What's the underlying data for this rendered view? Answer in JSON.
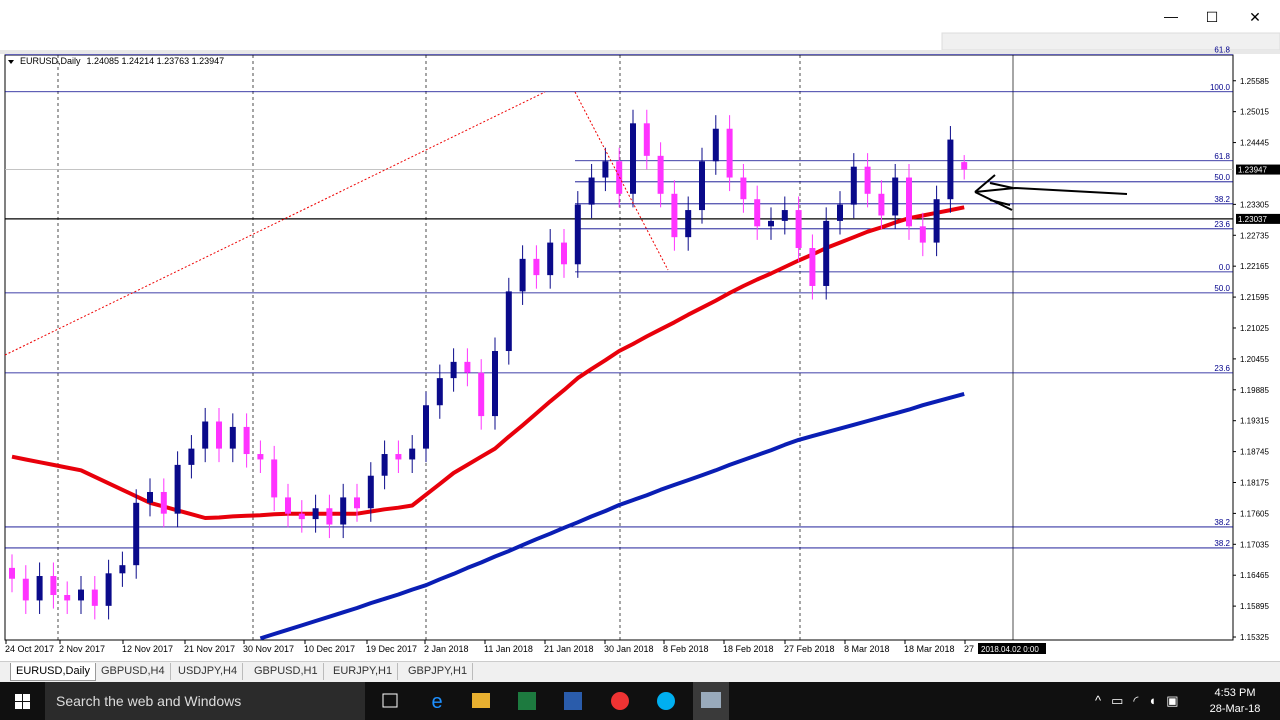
{
  "window": {
    "controls": {
      "minimize": "—",
      "maximize": "☐",
      "close": "✕"
    }
  },
  "chart_data": {
    "type": "candlestick",
    "title": "EURUSD,Daily",
    "ohlc_text": "1.24085 1.24214 1.23763 1.23947",
    "open": [
      1.166,
      1.164,
      1.16,
      1.1645,
      1.161,
      1.16,
      1.162,
      1.159,
      1.165,
      1.1665,
      1.178,
      1.18,
      1.176,
      1.185,
      1.188,
      1.193,
      1.188,
      1.192,
      1.187,
      1.186,
      1.179,
      1.176,
      1.175,
      1.177,
      1.174,
      1.179,
      1.177,
      1.183,
      1.187,
      1.186,
      1.188,
      1.196,
      1.201,
      1.204,
      1.202,
      1.194,
      1.206,
      1.217,
      1.223,
      1.22,
      1.226,
      1.222,
      1.233,
      1.238,
      1.241,
      1.235,
      1.248,
      1.242,
      1.235,
      1.227,
      1.232,
      1.241,
      1.247,
      1.238,
      1.234,
      1.229,
      1.23,
      1.232,
      1.225,
      1.218,
      1.23,
      1.233,
      1.24,
      1.235,
      1.231,
      1.238,
      1.229,
      1.226,
      1.234,
      1.24085
    ],
    "high": [
      1.1685,
      1.1665,
      1.167,
      1.167,
      1.1635,
      1.1645,
      1.1645,
      1.1675,
      1.169,
      1.1805,
      1.1825,
      1.1825,
      1.1875,
      1.1905,
      1.1955,
      1.1955,
      1.1945,
      1.1945,
      1.1895,
      1.1885,
      1.1815,
      1.1785,
      1.1795,
      1.1795,
      1.1815,
      1.1815,
      1.1855,
      1.1895,
      1.1895,
      1.1905,
      1.1985,
      1.2035,
      1.2065,
      1.2065,
      1.2045,
      1.2085,
      1.2195,
      1.2255,
      1.2255,
      1.2285,
      1.2285,
      1.2355,
      1.2405,
      1.2435,
      1.2435,
      1.2505,
      1.2505,
      1.2445,
      1.2375,
      1.2345,
      1.2435,
      1.2495,
      1.2495,
      1.2405,
      1.2365,
      1.2325,
      1.2345,
      1.2345,
      1.2275,
      1.2325,
      1.2355,
      1.2425,
      1.2425,
      1.2375,
      1.2405,
      1.2405,
      1.2315,
      1.2365,
      1.2475,
      1.24214
    ],
    "low": [
      1.1615,
      1.1575,
      1.1575,
      1.1585,
      1.1575,
      1.1575,
      1.1565,
      1.1565,
      1.1625,
      1.164,
      1.1755,
      1.1735,
      1.1735,
      1.1825,
      1.1855,
      1.1855,
      1.1855,
      1.1845,
      1.1835,
      1.1765,
      1.1735,
      1.1725,
      1.1725,
      1.1715,
      1.1715,
      1.1745,
      1.1745,
      1.1805,
      1.1835,
      1.1835,
      1.1855,
      1.1935,
      1.1985,
      1.1995,
      1.1915,
      1.1915,
      1.2035,
      1.2145,
      1.2175,
      1.2175,
      1.2195,
      1.2195,
      1.2305,
      1.2355,
      1.2325,
      1.2325,
      1.2395,
      1.2325,
      1.2245,
      1.2245,
      1.2295,
      1.2385,
      1.2355,
      1.2315,
      1.2265,
      1.2265,
      1.2275,
      1.2225,
      1.2155,
      1.2155,
      1.2275,
      1.2305,
      1.2325,
      1.2285,
      1.2285,
      1.2265,
      1.2235,
      1.2235,
      1.2315,
      1.23763
    ],
    "close": [
      1.164,
      1.16,
      1.1645,
      1.161,
      1.16,
      1.162,
      1.159,
      1.165,
      1.1665,
      1.178,
      1.18,
      1.176,
      1.185,
      1.188,
      1.193,
      1.188,
      1.192,
      1.187,
      1.186,
      1.179,
      1.176,
      1.175,
      1.177,
      1.174,
      1.179,
      1.177,
      1.183,
      1.187,
      1.186,
      1.188,
      1.196,
      1.201,
      1.204,
      1.202,
      1.194,
      1.206,
      1.217,
      1.223,
      1.22,
      1.226,
      1.222,
      1.233,
      1.238,
      1.241,
      1.235,
      1.248,
      1.242,
      1.235,
      1.227,
      1.232,
      1.241,
      1.247,
      1.238,
      1.234,
      1.229,
      1.23,
      1.232,
      1.225,
      1.218,
      1.23,
      1.233,
      1.24,
      1.235,
      1.231,
      1.238,
      1.229,
      1.226,
      1.234,
      1.245,
      1.23947
    ],
    "up_color": "#0a0a8a",
    "down_color": "#ff33ff",
    "moving_averages": [
      {
        "color": "#e8000b",
        "values": [
          1.1865,
          1.186,
          1.1855,
          1.185,
          1.1845,
          1.184,
          1.1828,
          1.1816,
          1.1804,
          1.1792,
          1.178,
          1.1773,
          1.1766,
          1.1759,
          1.1752,
          1.1753,
          1.1755,
          1.1756,
          1.1757,
          1.1759,
          1.176,
          1.176,
          1.176,
          1.176,
          1.176,
          1.176,
          1.1764,
          1.1768,
          1.1771,
          1.1775,
          1.1795,
          1.1815,
          1.1835,
          1.185,
          1.1865,
          1.188,
          1.1902,
          1.1923,
          1.1945,
          1.1967,
          1.1988,
          1.201,
          1.2027,
          1.2043,
          1.206,
          1.2073,
          1.2087,
          1.21,
          1.2113,
          1.2127,
          1.214,
          1.2153,
          1.2167,
          1.218,
          1.2192,
          1.2203,
          1.2215,
          1.2227,
          1.2238,
          1.225,
          1.226,
          1.227,
          1.228,
          1.2288,
          1.2297,
          1.2305,
          1.231,
          1.2315,
          1.232,
          1.2325
        ]
      },
      {
        "color": "#0a1eb4",
        "values": [
          null,
          null,
          null,
          null,
          null,
          null,
          null,
          null,
          null,
          null,
          null,
          null,
          null,
          null,
          null,
          null,
          null,
          null,
          1.153,
          1.1538,
          1.1546,
          1.1554,
          1.1562,
          1.157,
          1.1578,
          1.1586,
          1.1595,
          1.1603,
          1.1611,
          1.162,
          1.1628,
          1.1639,
          1.1649,
          1.166,
          1.167,
          1.1681,
          1.1691,
          1.1702,
          1.1713,
          1.1723,
          1.1734,
          1.1744,
          1.1755,
          1.1765,
          1.1776,
          1.1785,
          1.1794,
          1.1804,
          1.1813,
          1.1822,
          1.1831,
          1.184,
          1.185,
          1.1859,
          1.1868,
          1.1877,
          1.1887,
          1.1896,
          1.1903,
          1.191,
          1.1917,
          1.1924,
          1.1931,
          1.1938,
          1.1945,
          1.1952,
          1.196,
          1.1967,
          1.1974,
          1.1981
        ]
      }
    ],
    "fib_levels": [
      {
        "label": "61.8",
        "value": 1.26065
      },
      {
        "label": "100.0",
        "value": 1.25382
      },
      {
        "label": "61.8",
        "value": 1.24109
      },
      {
        "label": "50.0",
        "value": 1.23721
      },
      {
        "label": "38.2",
        "value": 1.23315
      },
      {
        "label": "23.6",
        "value": 1.22854
      },
      {
        "label": "0.0",
        "value": 1.2206
      },
      {
        "label": "50.0",
        "value": 1.21673
      },
      {
        "label": "23.6",
        "value": 1.20197
      },
      {
        "label": "38.2",
        "value": 1.17355
      },
      {
        "label": "38.2",
        "value": 1.16968
      }
    ],
    "price_labels": [
      1.23947,
      1.23037
    ],
    "ylim": [
      1.1527,
      1.2606
    ],
    "yticks": [
      1.25585,
      1.25015,
      1.24445,
      1.23305,
      1.22735,
      1.22165,
      1.21595,
      1.21025,
      1.20455,
      1.19885,
      1.19315,
      1.18745,
      1.18175,
      1.17605,
      1.17035,
      1.16465,
      1.15895,
      1.15325
    ],
    "date_labels": [
      "24 Oct 2017",
      "2 Nov 2017",
      "12 Nov 2017",
      "21 Nov 2017",
      "30 Nov 2017",
      "10 Dec 2017",
      "19 Dec 2017",
      "2 Jan 2018",
      "11 Jan 2018",
      "21 Jan 2018",
      "30 Jan 2018",
      "8 Feb 2018",
      "18 Feb 2018",
      "27 Feb 2018",
      "8 Mar 2018",
      "18 Mar 2018",
      "27"
    ],
    "crosshair_label": "2018.04.02 0:00"
  },
  "tabs": [
    "EURUSD,Daily",
    "GBPUSD,H4",
    "USDJPY,H4",
    "GBPUSD,H1",
    "EURJPY,H1",
    "GBPJPY,H1"
  ],
  "taskbar": {
    "search": "Search the web and Windows",
    "time": "4:53 PM",
    "date": "28-Mar-18"
  }
}
